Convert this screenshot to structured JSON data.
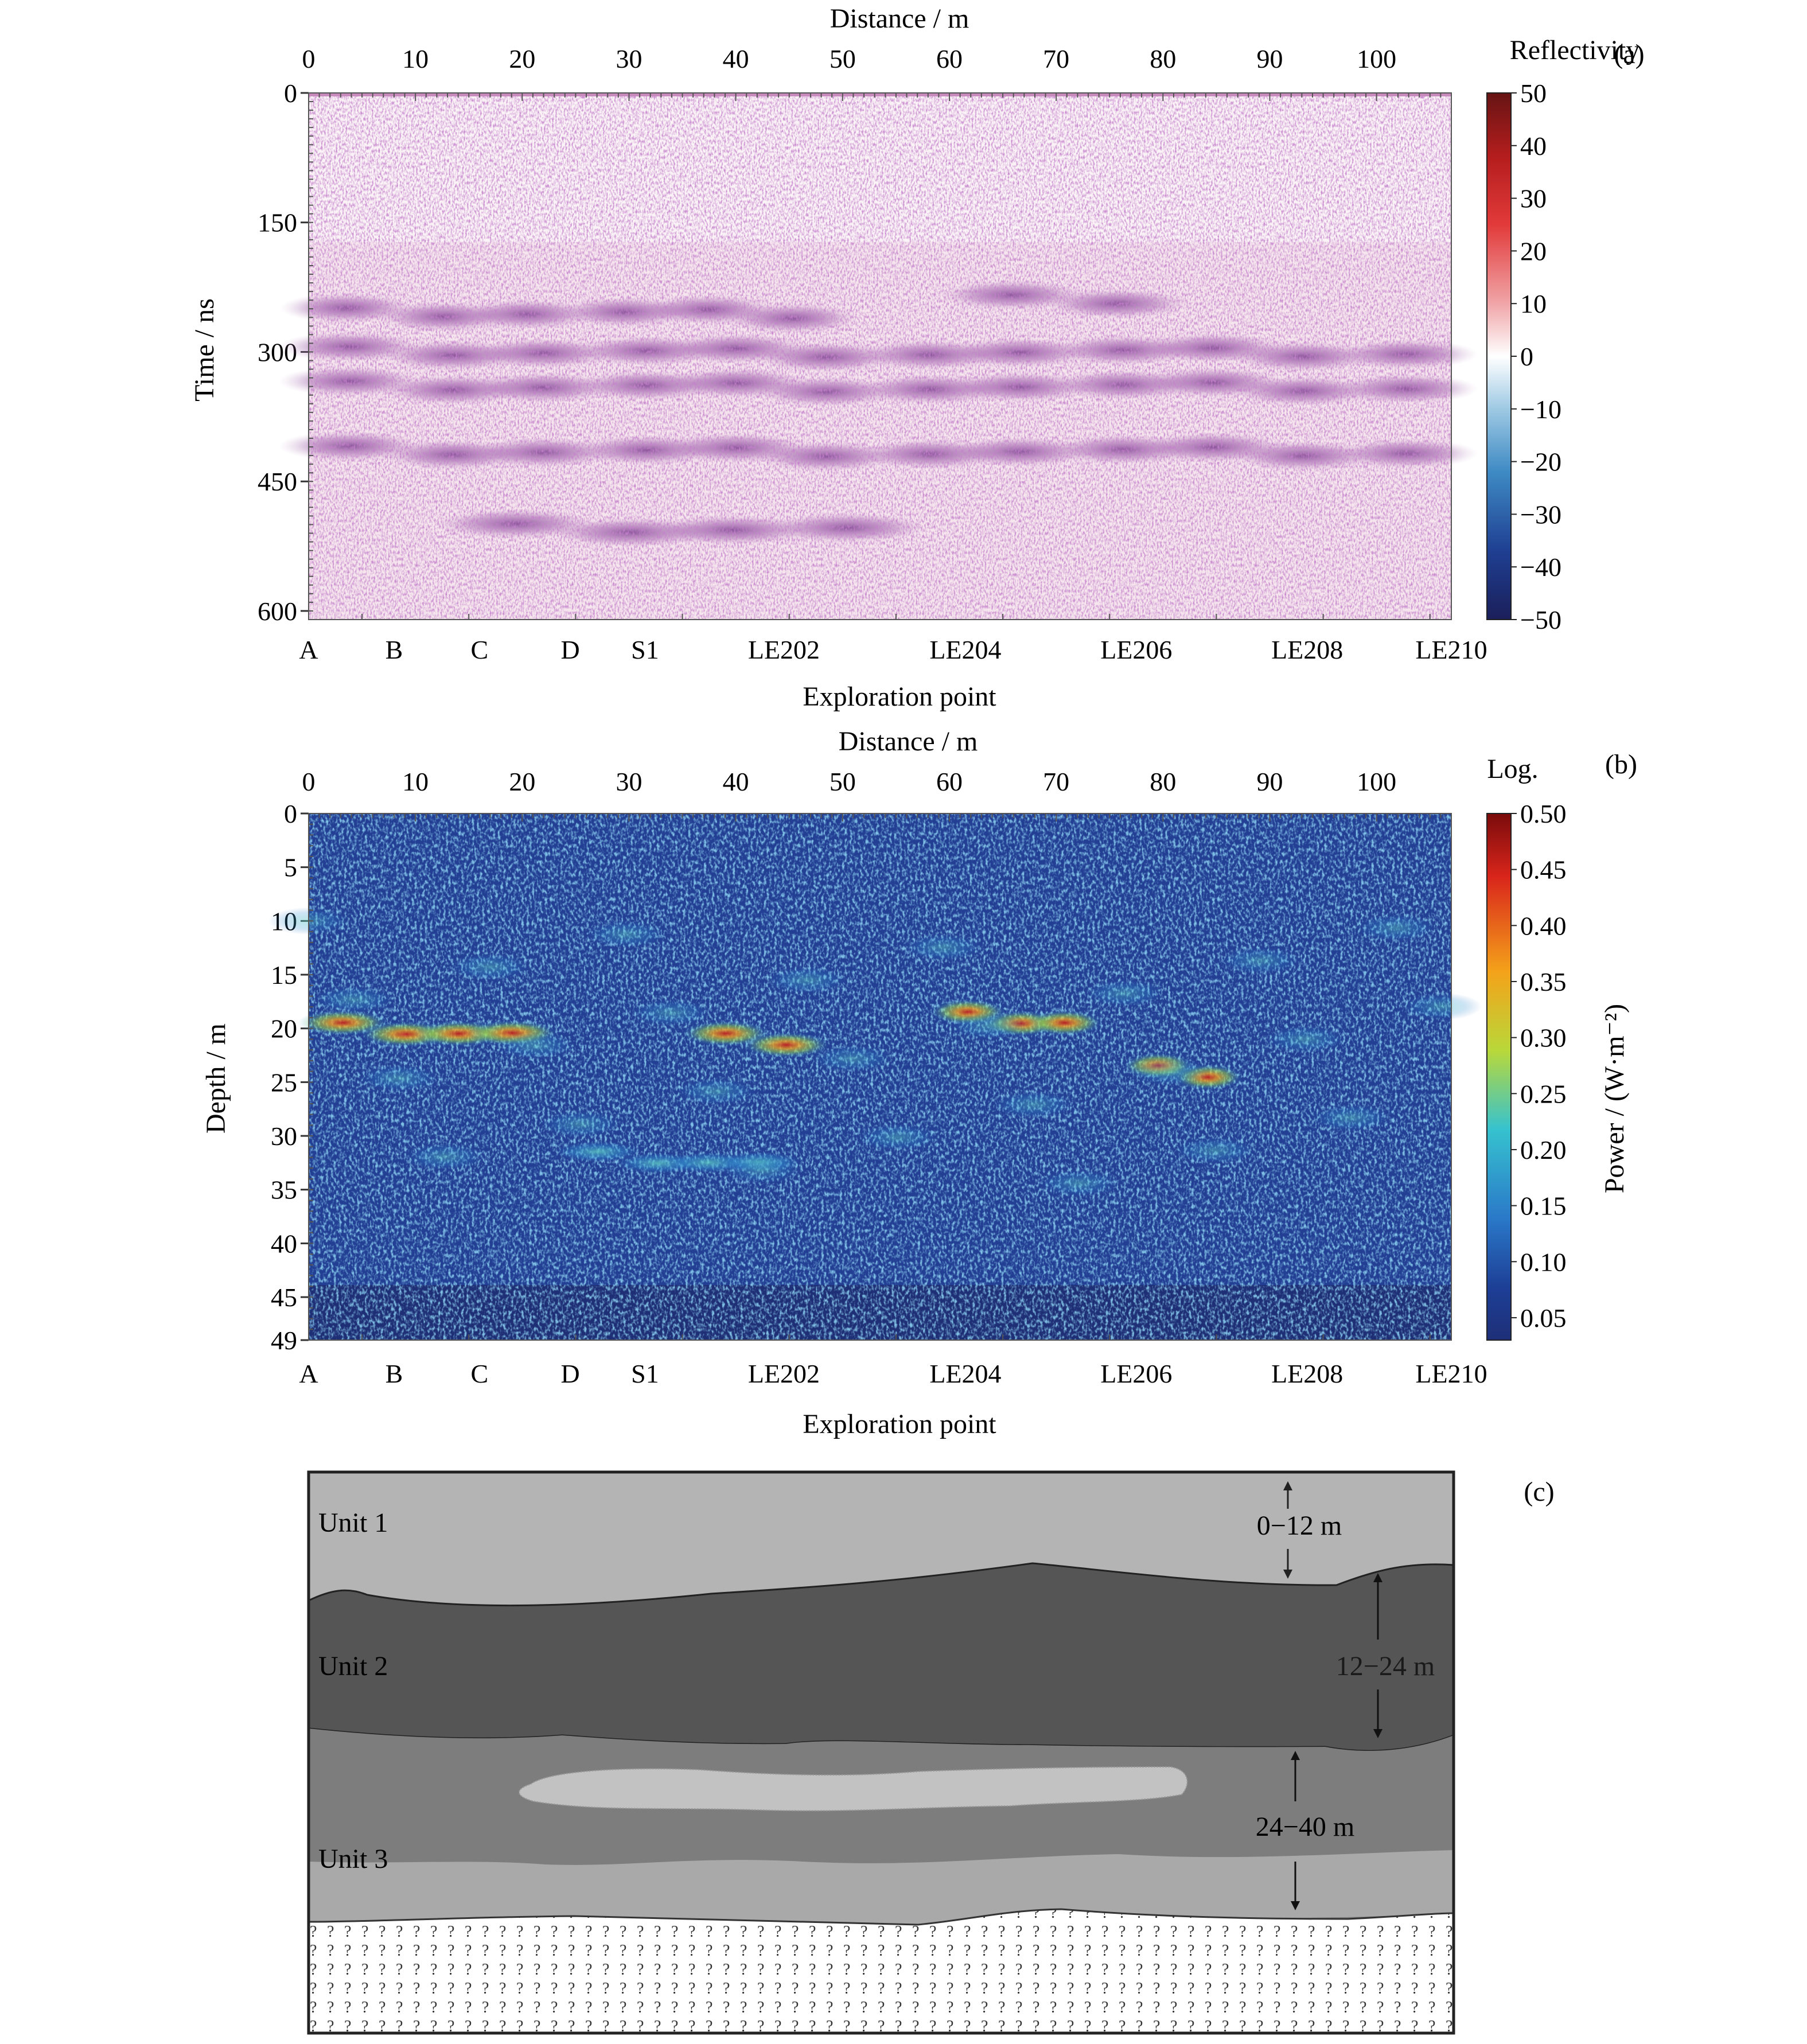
{
  "panels": {
    "a": {
      "tag": "(a)",
      "x_top_label": "Distance / m",
      "x_bottom_label": "Exploration point",
      "y_label": "Time / ns",
      "colorbar_title": "Reflectivity",
      "distance_ticks": [
        "0",
        "10",
        "20",
        "30",
        "40",
        "50",
        "60",
        "70",
        "80",
        "90",
        "100"
      ],
      "y_ticks": [
        "0",
        "150",
        "300",
        "450",
        "600"
      ],
      "colorbar_ticks": [
        "50",
        "40",
        "30",
        "20",
        "10",
        "0",
        "−10",
        "−20",
        "−30",
        "−40",
        "−50"
      ],
      "exploration_points": [
        "A",
        "B",
        "C",
        "D",
        "S1",
        "LE202",
        "LE204",
        "LE206",
        "LE208",
        "LE210"
      ]
    },
    "b": {
      "tag": "(b)",
      "x_top_label": "Distance / m",
      "x_bottom_label": "Exploration point",
      "y_label": "Depth / m",
      "colorbar_title": "Log.",
      "colorbar_axis_label": "Power / (W·m⁻²)",
      "distance_ticks": [
        "0",
        "10",
        "20",
        "30",
        "40",
        "50",
        "60",
        "70",
        "80",
        "90",
        "100"
      ],
      "y_ticks": [
        "0",
        "5",
        "10",
        "15",
        "20",
        "25",
        "30",
        "35",
        "40",
        "45",
        "49"
      ],
      "colorbar_ticks": [
        "0.50",
        "0.45",
        "0.40",
        "0.35",
        "0.30",
        "0.25",
        "0.20",
        "0.15",
        "0.10",
        "0.05"
      ],
      "exploration_points": [
        "A",
        "B",
        "C",
        "D",
        "S1",
        "LE202",
        "LE204",
        "LE206",
        "LE208",
        "LE210"
      ]
    },
    "c": {
      "tag": "(c)",
      "units": [
        "Unit 1",
        "Unit 2",
        "Unit 3"
      ],
      "thicknesses": [
        "0−12 m",
        "12−24 m",
        "24−40 m"
      ]
    }
  },
  "chart_data": [
    {
      "type": "heatmap",
      "panel": "a",
      "title": "",
      "xlabel": "Distance / m",
      "x2label": "Exploration point",
      "ylabel": "Time / ns",
      "xlim": [
        0,
        107
      ],
      "ylim": [
        0,
        610
      ],
      "y_inverted": true,
      "colorbar": {
        "label": "Reflectivity",
        "range": [
          -50,
          50
        ],
        "colormap": "diverging blue-white-red"
      },
      "exploration_points": [
        {
          "name": "A",
          "distance": 0
        },
        {
          "name": "B",
          "distance": 8
        },
        {
          "name": "C",
          "distance": 16
        },
        {
          "name": "D",
          "distance": 24.5
        },
        {
          "name": "S1",
          "distance": 31.5
        },
        {
          "name": "LE202",
          "distance": 44.5
        },
        {
          "name": "LE204",
          "distance": 61.5
        },
        {
          "name": "LE206",
          "distance": 77.5
        },
        {
          "name": "LE208",
          "distance": 93.5
        },
        {
          "name": "LE210",
          "distance": 107
        }
      ],
      "reflector_bands_ns": [
        {
          "time": 255,
          "range": [
            0,
            50
          ]
        },
        {
          "time": 240,
          "range": [
            62,
            80
          ]
        },
        {
          "time": 300,
          "range": [
            0,
            107
          ]
        },
        {
          "time": 340,
          "range": [
            0,
            107
          ]
        },
        {
          "time": 415,
          "range": [
            0,
            107
          ]
        },
        {
          "time": 505,
          "range": [
            15,
            55
          ]
        }
      ]
    },
    {
      "type": "heatmap",
      "panel": "b",
      "title": "",
      "xlabel": "Distance / m",
      "x2label": "Exploration point",
      "ylabel": "Depth / m",
      "xlim": [
        0,
        107
      ],
      "ylim": [
        0,
        49
      ],
      "y_inverted": true,
      "colorbar": {
        "label": "Power / (W·m⁻²)",
        "title": "Log.",
        "range": [
          0.03,
          0.5
        ],
        "colormap": "jet"
      },
      "high_power_zones": [
        {
          "depth": 20,
          "range": [
            1,
            22
          ],
          "level": 0.45
        },
        {
          "depth": 21,
          "range": [
            37,
            47
          ],
          "level": 0.35
        },
        {
          "depth": 19,
          "range": [
            60,
            73
          ],
          "level": 0.45
        },
        {
          "depth": 24,
          "range": [
            78,
            86
          ],
          "level": 0.4
        },
        {
          "depth": 32,
          "range": [
            25,
            45
          ],
          "level": 0.25
        }
      ]
    },
    {
      "type": "table",
      "panel": "c",
      "title": "",
      "rows": [
        {
          "unit": "Unit 1",
          "thickness": "0−12 m"
        },
        {
          "unit": "Unit 2",
          "thickness": "12−24 m"
        },
        {
          "unit": "Unit 3",
          "thickness": "24−40 m"
        }
      ]
    }
  ]
}
